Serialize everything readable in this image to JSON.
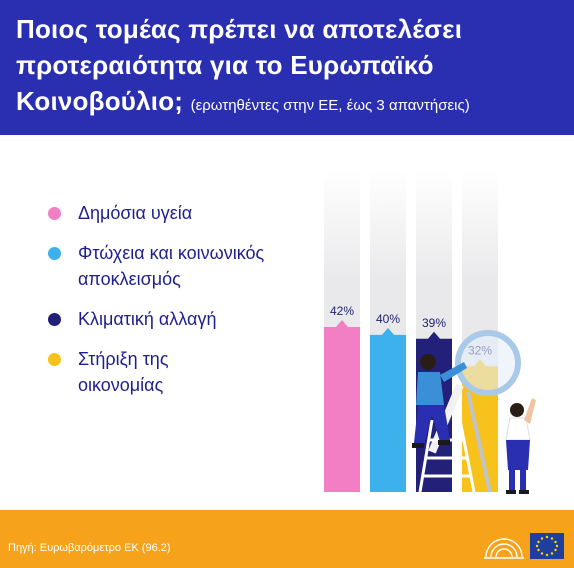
{
  "title": {
    "line1": "Ποιος τομέας πρέπει να αποτελέσει",
    "line2": "προτεραιότητα για το Ευρωπαϊκό",
    "line3": "Κοινοβούλιο;",
    "subtitle": "(ερωτηθέντες στην ΕΕ, έως 3 απαντήσεις)"
  },
  "legend": [
    {
      "line1": "Δημόσια υγεία",
      "line2": "",
      "color": "#f27fc4"
    },
    {
      "line1": "Φτώχεια και κοινωνικός",
      "line2": "αποκλεισμός",
      "color": "#3db1ec"
    },
    {
      "line1": "Κλιματική αλλαγή",
      "line2": "",
      "color": "#23207a"
    },
    {
      "line1": "Στήριξη της",
      "line2": "οικονομίας",
      "color": "#f7c21b"
    }
  ],
  "chart_data": {
    "type": "bar",
    "categories": [
      "Δημόσια υγεία",
      "Φτώχεια και κοινωνικός αποκλεισμός",
      "Κλιματική αλλαγή",
      "Στήριξη της οικονομίας"
    ],
    "values": [
      42,
      40,
      39,
      32
    ],
    "labels": [
      "42%",
      "40%",
      "39%",
      "32%"
    ],
    "colors": [
      "#f27fc4",
      "#3db1ec",
      "#23207a",
      "#f7c21b"
    ],
    "unit": "%",
    "ylim": [
      0,
      100
    ]
  },
  "footer": {
    "source": "Πηγή: Ευρωβαρόμετρο ΕΚ (96.2)"
  }
}
